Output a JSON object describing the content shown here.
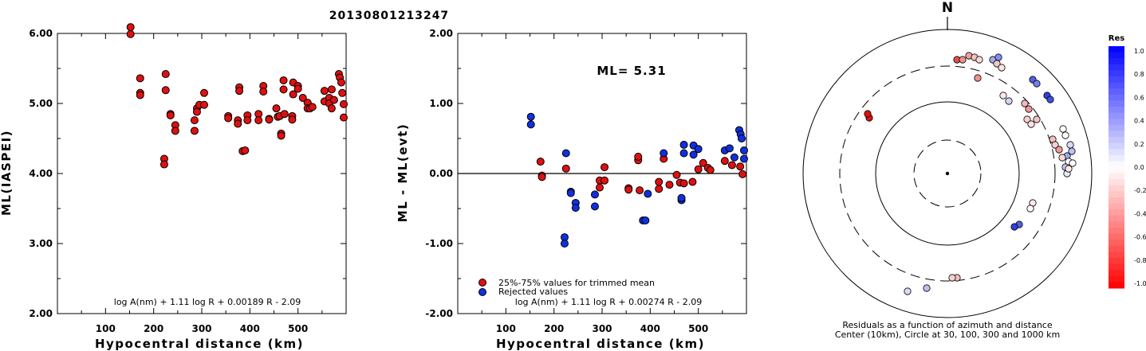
{
  "title": "20130801213247",
  "colors": {
    "red": "#e01010",
    "blue": "#1030e0",
    "frame": "#000000"
  },
  "charts": {
    "left": {
      "ylabel": "ML(IASPEI)",
      "xlabel": "Hypocentral distance (km)",
      "formula": "log A(nm) + 1.11 log R + 0.00189 R - 2.09",
      "yticks": [
        "6.00",
        "5.00",
        "4.00",
        "3.00",
        "2.00"
      ],
      "xticks": [
        "100",
        "200",
        "300",
        "400",
        "500"
      ]
    },
    "middle": {
      "ylabel": "ML - ML(evt)",
      "xlabel": "Hypocentral distance (km)",
      "ml_text": "ML= 5.31",
      "formula": "log A(nm) + 1.11 log R + 0.00274 R - 2.09",
      "legend_red": "25%-75% values for trimmed mean",
      "legend_blue": "Rejected values",
      "yticks": [
        "2.00",
        "1.00",
        "0.00",
        "-1.00",
        "-2.00"
      ],
      "xticks": [
        "100",
        "200",
        "300",
        "400",
        "500"
      ]
    },
    "polar": {
      "north": "N",
      "caption1": "Residuals as a function of azimuth and distance",
      "caption2": "Center (10km), Circle at 30, 100, 300 and 1000 km"
    },
    "colorbar": {
      "title": "Res",
      "labels": [
        "1.0",
        "0.8",
        "0.6",
        "0.4",
        "0.2",
        "0.0",
        "-0.2",
        "-0.4",
        "-0.6",
        "-0.8",
        "-1.0"
      ]
    }
  },
  "chart_data": [
    {
      "type": "scatter",
      "title": "20130801213247",
      "xlabel": "Hypocentral distance (km)",
      "ylabel": "ML(IASPEI)",
      "xlim": [
        0,
        600
      ],
      "ylim": [
        2.0,
        6.0
      ],
      "series": [
        {
          "color": "red",
          "points": [
            [
              152,
              6.09
            ],
            [
              152,
              5.99
            ],
            [
              172,
              5.36
            ],
            [
              172,
              5.15
            ],
            [
              172,
              5.12
            ],
            [
              222,
              4.21
            ],
            [
              222,
              4.13
            ],
            [
              225,
              5.42
            ],
            [
              225,
              5.19
            ],
            [
              235,
              4.85
            ],
            [
              235,
              4.83
            ],
            [
              245,
              4.69
            ],
            [
              245,
              4.61
            ],
            [
              285,
              4.76
            ],
            [
              285,
              4.61
            ],
            [
              290,
              4.93
            ],
            [
              290,
              4.88
            ],
            [
              295,
              4.98
            ],
            [
              305,
              5.15
            ],
            [
              305,
              4.98
            ],
            [
              355,
              4.82
            ],
            [
              355,
              4.79
            ],
            [
              375,
              4.76
            ],
            [
              375,
              4.71
            ],
            [
              378,
              5.23
            ],
            [
              378,
              5.18
            ],
            [
              385,
              4.32
            ],
            [
              390,
              4.33
            ],
            [
              395,
              4.83
            ],
            [
              395,
              4.76
            ],
            [
              418,
              4.85
            ],
            [
              418,
              4.76
            ],
            [
              428,
              5.25
            ],
            [
              428,
              5.17
            ],
            [
              440,
              4.78
            ],
            [
              440,
              4.77
            ],
            [
              455,
              4.93
            ],
            [
              458,
              4.81
            ],
            [
              462,
              4.82
            ],
            [
              465,
              4.57
            ],
            [
              465,
              4.54
            ],
            [
              470,
              5.33
            ],
            [
              470,
              5.2
            ],
            [
              472,
              4.85
            ],
            [
              488,
              4.82
            ],
            [
              488,
              4.77
            ],
            [
              490,
              5.3
            ],
            [
              490,
              5.13
            ],
            [
              500,
              5.25
            ],
            [
              500,
              5.21
            ],
            [
              510,
              5.08
            ],
            [
              520,
              5.01
            ],
            [
              520,
              4.93
            ],
            [
              525,
              4.93
            ],
            [
              530,
              4.95
            ],
            [
              555,
              5.18
            ],
            [
              555,
              5.03
            ],
            [
              565,
              5.08
            ],
            [
              565,
              5.0
            ],
            [
              570,
              5.2
            ],
            [
              570,
              4.93
            ],
            [
              575,
              5.05
            ],
            [
              585,
              5.42
            ],
            [
              587,
              5.37
            ],
            [
              590,
              5.3
            ],
            [
              592,
              5.15
            ],
            [
              595,
              4.99
            ],
            [
              595,
              4.8
            ]
          ]
        }
      ]
    },
    {
      "type": "scatter",
      "xlabel": "Hypocentral distance (km)",
      "ylabel": "ML - ML(evt)",
      "xlim": [
        0,
        600
      ],
      "ylim": [
        -2.0,
        2.0
      ],
      "annotation": "ML= 5.31",
      "series": [
        {
          "name": "25%-75% values for trimmed mean",
          "color": "red",
          "points": [
            [
              172,
              0.17
            ],
            [
              175,
              -0.03
            ],
            [
              175,
              -0.05
            ],
            [
              225,
              0.07
            ],
            [
              295,
              -0.1
            ],
            [
              295,
              -0.2
            ],
            [
              305,
              0.09
            ],
            [
              305,
              -0.1
            ],
            [
              355,
              -0.21
            ],
            [
              355,
              -0.23
            ],
            [
              375,
              0.19
            ],
            [
              375,
              0.24
            ],
            [
              378,
              -0.24
            ],
            [
              418,
              -0.12
            ],
            [
              418,
              -0.22
            ],
            [
              428,
              0.21
            ],
            [
              440,
              -0.16
            ],
            [
              455,
              -0.02
            ],
            [
              462,
              -0.13
            ],
            [
              470,
              -0.14
            ],
            [
              488,
              -0.12
            ],
            [
              500,
              0.06
            ],
            [
              510,
              0.15
            ],
            [
              520,
              0.08
            ],
            [
              525,
              0.05
            ],
            [
              555,
              0.18
            ],
            [
              570,
              0.12
            ],
            [
              587,
              0.1
            ],
            [
              592,
              -0.01
            ]
          ]
        },
        {
          "name": "Rejected values",
          "color": "blue",
          "points": [
            [
              152,
              0.81
            ],
            [
              152,
              0.7
            ],
            [
              222,
              -0.91
            ],
            [
              222,
              -1.0
            ],
            [
              225,
              0.29
            ],
            [
              235,
              -0.26
            ],
            [
              235,
              -0.28
            ],
            [
              245,
              -0.42
            ],
            [
              245,
              -0.49
            ],
            [
              285,
              -0.3
            ],
            [
              285,
              -0.47
            ],
            [
              385,
              -0.67
            ],
            [
              390,
              -0.67
            ],
            [
              395,
              -0.29
            ],
            [
              428,
              0.29
            ],
            [
              465,
              -0.38
            ],
            [
              465,
              -0.35
            ],
            [
              470,
              0.41
            ],
            [
              470,
              0.29
            ],
            [
              490,
              0.4
            ],
            [
              490,
              0.27
            ],
            [
              500,
              0.35
            ],
            [
              555,
              0.33
            ],
            [
              565,
              0.36
            ],
            [
              575,
              0.23
            ],
            [
              585,
              0.62
            ],
            [
              588,
              0.56
            ],
            [
              590,
              0.5
            ],
            [
              595,
              0.33
            ],
            [
              595,
              0.21
            ]
          ]
        }
      ]
    }
  ]
}
